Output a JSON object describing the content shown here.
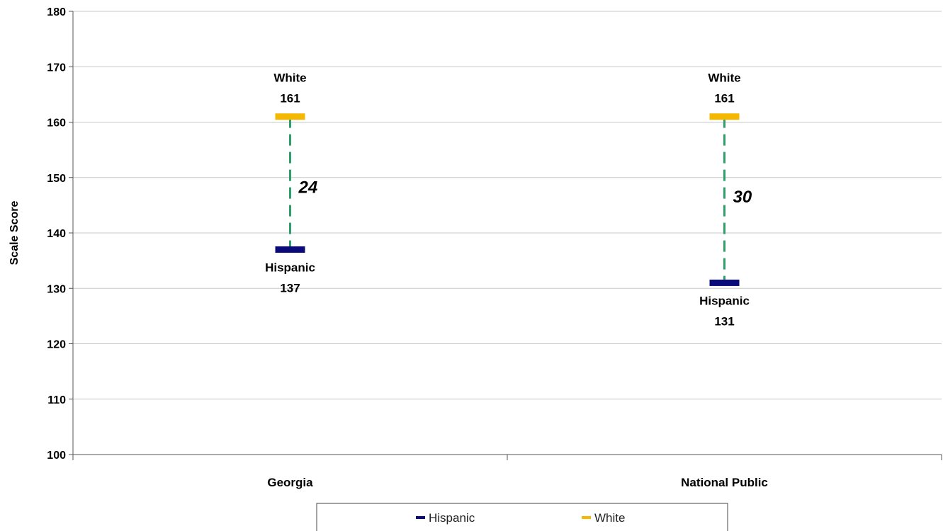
{
  "chart_data": {
    "type": "scatter",
    "title": "",
    "xlabel": "",
    "ylabel": "Scale Score",
    "ylim": [
      100,
      180
    ],
    "y_ticks": [
      100,
      110,
      120,
      130,
      140,
      150,
      160,
      170,
      180
    ],
    "categories": [
      "Georgia",
      "National Public"
    ],
    "series": [
      {
        "name": "Hispanic",
        "values": [
          137,
          131
        ],
        "color": "#0a0a7a"
      },
      {
        "name": "White",
        "values": [
          161,
          161
        ],
        "color": "#f5b800"
      }
    ],
    "point_labels": {
      "Hispanic": [
        "Hispanic",
        "Hispanic"
      ],
      "White": [
        "White",
        "White"
      ]
    },
    "gaps": [
      "24",
      "30"
    ],
    "gap_line_color": "#2e9e6a",
    "grid": true,
    "legend": {
      "position": "bottom",
      "entries": [
        "Hispanic",
        "White"
      ]
    }
  }
}
